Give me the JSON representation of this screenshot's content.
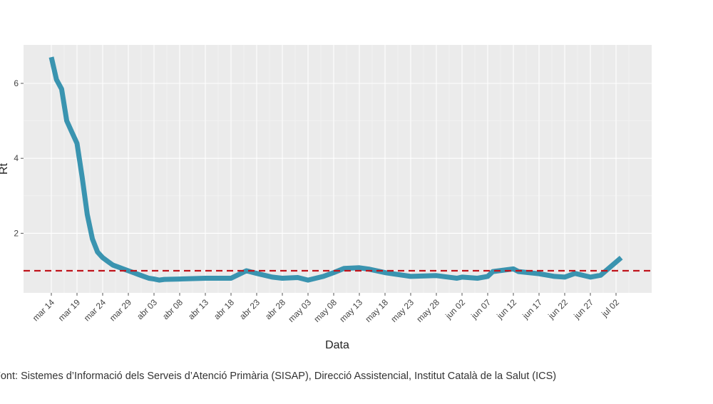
{
  "chart_data": {
    "type": "line",
    "xlabel": "Data",
    "ylabel": "Rt",
    "x_tick_labels": [
      "mar 14",
      "mar 19",
      "mar 24",
      "mar 29",
      "abr 03",
      "abr 08",
      "abr 13",
      "abr 18",
      "abr 23",
      "abr 28",
      "may 03",
      "may 08",
      "may 13",
      "may 18",
      "may 23",
      "may 28",
      "jun 02",
      "jun 07",
      "jun 12",
      "jun 17",
      "jun 22",
      "jun 27",
      "jul 02"
    ],
    "y_ticks": [
      2,
      4,
      6
    ],
    "ylim": [
      0.35,
      7.0
    ],
    "xlim_days": [
      -3,
      121
    ],
    "grid": true,
    "reference_line": {
      "y": 1,
      "color": "#c0141c",
      "style": "dashed"
    },
    "series": [
      {
        "color": "#3a94b0",
        "x": [
          "2020-03-14",
          "2020-03-15",
          "2020-03-16",
          "2020-03-17",
          "2020-03-18",
          "2020-03-19",
          "2020-03-20",
          "2020-03-21",
          "2020-03-22",
          "2020-03-23",
          "2020-03-24",
          "2020-03-25",
          "2020-03-26",
          "2020-03-27",
          "2020-03-28",
          "2020-03-29",
          "2020-03-30",
          "2020-03-31",
          "2020-04-01",
          "2020-04-02",
          "2020-04-03",
          "2020-04-04",
          "2020-04-05",
          "2020-04-08",
          "2020-04-13",
          "2020-04-18",
          "2020-04-21",
          "2020-04-23",
          "2020-04-26",
          "2020-04-28",
          "2020-05-01",
          "2020-05-03",
          "2020-05-06",
          "2020-05-08",
          "2020-05-10",
          "2020-05-13",
          "2020-05-15",
          "2020-05-18",
          "2020-05-23",
          "2020-05-28",
          "2020-06-01",
          "2020-06-02",
          "2020-06-05",
          "2020-06-07",
          "2020-06-08",
          "2020-06-12",
          "2020-06-13",
          "2020-06-17",
          "2020-06-20",
          "2020-06-22",
          "2020-06-24",
          "2020-06-27",
          "2020-06-29",
          "2020-07-03"
        ],
        "y": [
          6.7,
          6.1,
          5.85,
          5.0,
          4.7,
          4.4,
          3.5,
          2.5,
          1.85,
          1.5,
          1.35,
          1.25,
          1.15,
          1.1,
          1.05,
          1.0,
          0.95,
          0.9,
          0.85,
          0.8,
          0.78,
          0.75,
          0.77,
          0.78,
          0.8,
          0.8,
          1.0,
          0.93,
          0.83,
          0.8,
          0.82,
          0.75,
          0.85,
          0.95,
          1.06,
          1.08,
          1.04,
          0.95,
          0.85,
          0.87,
          0.8,
          0.83,
          0.8,
          0.85,
          0.98,
          1.05,
          0.98,
          0.92,
          0.85,
          0.83,
          0.93,
          0.83,
          0.88,
          1.35
        ]
      }
    ]
  },
  "source_text": "Font: Sistemes d’Informació dels Serveis d’Atenció Primària (SISAP), Direcció Assistencial, Institut Català de la Salut (ICS)"
}
